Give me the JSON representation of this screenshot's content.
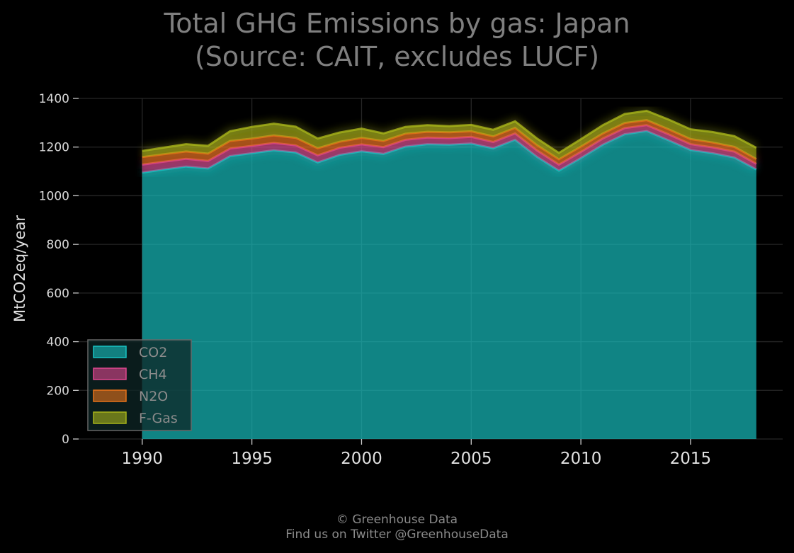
{
  "chart_data": {
    "type": "area",
    "stacked": true,
    "title": "Total GHG Emissions by gas: Japan",
    "subtitle": "(Source: CAIT, excludes LUCF)",
    "xlabel": "",
    "ylabel": "MtCO2eq/year",
    "xlim": [
      1987.1,
      2019.2
    ],
    "ylim": [
      0,
      1400
    ],
    "x_ticks": [
      1990,
      1995,
      2000,
      2005,
      2010,
      2015
    ],
    "y_ticks": [
      0,
      200,
      400,
      600,
      800,
      1000,
      1200,
      1400
    ],
    "grid": true,
    "legend_position": "bottom-left",
    "x": [
      1990,
      1991,
      1992,
      1993,
      1994,
      1995,
      1996,
      1997,
      1998,
      1999,
      2000,
      2001,
      2002,
      2003,
      2004,
      2005,
      2006,
      2007,
      2008,
      2009,
      2010,
      2011,
      2012,
      2013,
      2014,
      2015,
      2016,
      2017,
      2018
    ],
    "series": [
      {
        "name": "CO2",
        "color": "#17c3c3",
        "values": [
          1095,
          1108,
          1120,
          1112,
          1163,
          1175,
          1187,
          1178,
          1137,
          1168,
          1183,
          1172,
          1202,
          1212,
          1210,
          1215,
          1195,
          1230,
          1160,
          1103,
          1155,
          1210,
          1253,
          1266,
          1228,
          1188,
          1175,
          1157,
          1108
        ]
      },
      {
        "name": "CH4",
        "color": "#e0468f",
        "values": [
          33,
          32,
          32,
          31,
          31,
          30,
          30,
          29,
          29,
          29,
          28,
          28,
          28,
          27,
          27,
          27,
          26,
          26,
          26,
          25,
          25,
          25,
          25,
          24,
          24,
          24,
          24,
          24,
          23
        ]
      },
      {
        "name": "N2O",
        "color": "#e8731a",
        "values": [
          31,
          31,
          30,
          30,
          31,
          30,
          31,
          31,
          29,
          25,
          27,
          25,
          25,
          24,
          24,
          23,
          23,
          23,
          22,
          22,
          22,
          21,
          21,
          21,
          21,
          21,
          20,
          20,
          20
        ]
      },
      {
        "name": "F-Gas",
        "color": "#a8b41a",
        "values": [
          25,
          27,
          30,
          32,
          40,
          48,
          48,
          46,
          40,
          38,
          38,
          31,
          28,
          27,
          25,
          26,
          27,
          27,
          27,
          26,
          30,
          34,
          37,
          38,
          40,
          40,
          43,
          44,
          46
        ]
      }
    ]
  },
  "footer": {
    "line1": "© Greenhouse Data",
    "line2": "Find us on Twitter @GreenhouseData"
  }
}
